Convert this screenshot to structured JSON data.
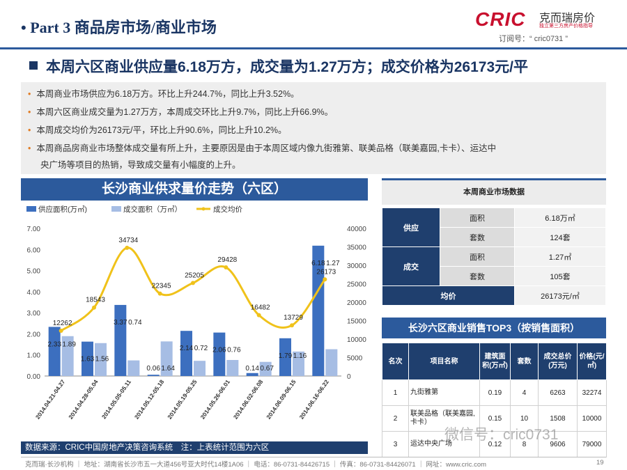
{
  "header": {
    "part_title": "• Part 3 商品房市场/商业市场",
    "logo_brand": "CRIC",
    "logo_cn": "克而瑞房价",
    "logo_slogan": "独立第三方房产价格指导",
    "subscribe": "订阅号：“ cric0731 ”"
  },
  "headline": "本周六区商业供应量6.18万方，成交量为1.27万方；成交价格为26173元/平",
  "summary": [
    "本周商业市场供应为6.18万方。环比上升244.7%，同比上升3.52%。",
    "本周六区商业成交量为1.27万方，本周成交环比上升9.7%，同比上升66.9%。",
    "本周成交均价为26173元/平，环比上升90.6%，同比上升10.2%。",
    "本周商品房商业市场整体成交量有所上升，主要原因是由于本周区域内像九街雅第、联美品格（联美嘉园,卡卡）、运达中",
    "央广场等项目的热销，导致成交量有小幅度的上升。"
  ],
  "chart_banner": "长沙商业供求量价走势（六区）",
  "chart_data": {
    "type": "bar",
    "categories": [
      "2014.04.21-04.27",
      "2014.04.28-05.04",
      "2014.05.05-05.11",
      "2014.05.12-05.18",
      "2014.05.19-05.25",
      "2014.05.26-06.01",
      "2014.06.02-06.08",
      "2014.06.09-06.15",
      "2014.06.16-06.22"
    ],
    "series": [
      {
        "name": "供应面积(万㎡)",
        "values": [
          2.33,
          1.63,
          3.37,
          0.06,
          2.14,
          2.06,
          0.14,
          1.79,
          6.18
        ],
        "color": "#3c6fbf"
      },
      {
        "name": "成交面积（万㎡）",
        "values": [
          1.89,
          1.56,
          0.74,
          1.64,
          0.72,
          0.76,
          0.67,
          1.16,
          1.27
        ],
        "color": "#a6bde4"
      },
      {
        "name": "成交均价",
        "values": [
          12262,
          18543,
          34734,
          22345,
          25205,
          29428,
          16482,
          13729,
          26173
        ],
        "color": "#f0c21a",
        "axis": "right"
      }
    ],
    "y_left": {
      "ticks": [
        "0.00",
        "1.00",
        "2.00",
        "3.00",
        "4.00",
        "5.00",
        "6.00",
        "7.00"
      ],
      "ylim": [
        0,
        7
      ]
    },
    "y_right": {
      "ticks": [
        "0",
        "5000",
        "10000",
        "15000",
        "20000",
        "25000",
        "30000",
        "35000",
        "40000"
      ],
      "ylim": [
        0,
        40000
      ]
    },
    "legend_position": "top-left",
    "grid": false
  },
  "source_note": "数据来源：CRIC中国房地产决策咨询系统　注：上表统计范围为六区",
  "market": {
    "title": "本周商业市场数据",
    "supply_label": "供应",
    "deal_label": "成交",
    "area_label": "面积",
    "units_label": "套数",
    "supply_area": "6.18万㎡",
    "supply_units": "124套",
    "deal_area": "1.27㎡",
    "deal_units": "105套",
    "price_label": "均价",
    "price_value": "26173元/㎡"
  },
  "top3": {
    "title": "长沙六区商业销售TOP3（按销售面积）",
    "headers": [
      "名次",
      "项目名称",
      "建筑面积(万㎡)",
      "套数",
      "成交总价(万元)",
      "价格(元/㎡)"
    ],
    "rows": [
      [
        "1",
        "九街雅第",
        "0.19",
        "4",
        "6263",
        "32274"
      ],
      [
        "2",
        "联美品格（联美嘉园,卡卡）",
        "0.15",
        "10",
        "1508",
        "10000"
      ],
      [
        "3",
        "运达中央广场",
        "0.12",
        "8",
        "9606",
        "79000"
      ]
    ]
  },
  "watermark": "微信号：cric0731",
  "footer": {
    "text": "克而瑞·长沙机构 ｜ 地址：湖南省长沙市五一大道456号亚大时代14楼1A06 ｜ 电话：86-0731-84426715 ｜ 传真：86-0731-84426071 ｜ 网址：www.cric.com",
    "page": "19"
  }
}
